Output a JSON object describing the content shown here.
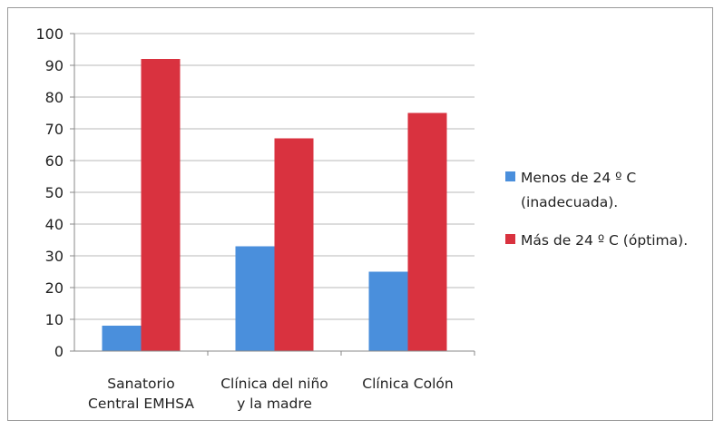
{
  "chart_data": {
    "type": "bar",
    "categories": [
      [
        "Sanatorio",
        "Central EMHSA"
      ],
      [
        "Clínica del niño",
        "y la madre"
      ],
      [
        "Clínica Colón"
      ]
    ],
    "series": [
      {
        "name_lines": [
          "Menos de 24 º C",
          "(inadecuada)."
        ],
        "color": "#4a8fdc",
        "values": [
          8,
          33,
          25
        ]
      },
      {
        "name_lines": [
          "Más de 24 º C (óptima)."
        ],
        "color": "#d9323f",
        "values": [
          92,
          67,
          75
        ]
      }
    ],
    "yticks": [
      "0",
      "10",
      "20",
      "30",
      "40",
      "50",
      "60",
      "70",
      "80",
      "90",
      "100"
    ],
    "ylim": [
      0,
      100
    ],
    "grid": true,
    "legend_position": "right"
  }
}
